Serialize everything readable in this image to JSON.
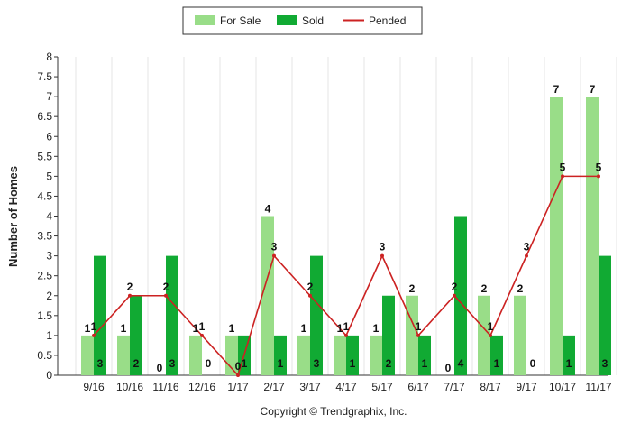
{
  "chart_data": {
    "type": "bar",
    "title": "",
    "xlabel": "",
    "ylabel": "Number of Homes",
    "ylim": [
      0,
      8
    ],
    "ytick_step": 0.5,
    "ytick_labels": [
      "0",
      "0.5",
      "1",
      "1.5",
      "2",
      "2.5",
      "3",
      "3.5",
      "4",
      "4.5",
      "5",
      "5.5",
      "6",
      "6.5",
      "7",
      "7.5",
      "8"
    ],
    "categories": [
      "9/16",
      "10/16",
      "11/16",
      "12/16",
      "1/17",
      "2/17",
      "3/17",
      "4/17",
      "5/17",
      "6/17",
      "7/17",
      "8/17",
      "9/17",
      "10/17",
      "11/17"
    ],
    "series": [
      {
        "name": "For Sale",
        "kind": "bar",
        "color": "#99dd88",
        "values": [
          1,
          1,
          0,
          1,
          1,
          4,
          1,
          1,
          1,
          2,
          0,
          2,
          2,
          7,
          7
        ]
      },
      {
        "name": "Sold",
        "kind": "bar",
        "color": "#11aa33",
        "values": [
          3,
          2,
          3,
          0,
          1,
          1,
          3,
          1,
          2,
          1,
          4,
          1,
          0,
          1,
          3
        ]
      },
      {
        "name": "Pended",
        "kind": "line",
        "color": "#cc2222",
        "values": [
          1,
          2,
          2,
          1,
          0,
          3,
          2,
          1,
          3,
          1,
          2,
          1,
          3,
          5,
          5
        ]
      }
    ],
    "legend_position": "top-center",
    "grid": "vertical"
  },
  "footer": {
    "copyright": "Copyright © Trendgraphix, Inc."
  }
}
